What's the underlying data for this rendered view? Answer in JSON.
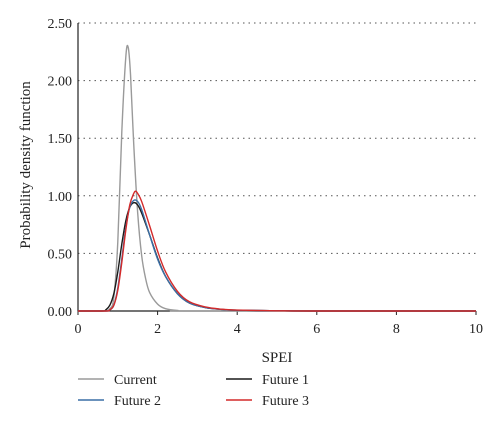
{
  "chart_data": {
    "type": "line",
    "xlabel": "SPEI",
    "ylabel": "Probability density function",
    "xlim": [
      0,
      10
    ],
    "ylim": [
      0,
      2.5
    ],
    "x_ticks": [
      "0",
      "2",
      "4",
      "6",
      "8",
      "10"
    ],
    "y_ticks": [
      "0.00",
      "0.50",
      "1.00",
      "1.50",
      "2.00",
      "2.50"
    ],
    "grid": "horizontal dotted",
    "legend_position": "bottom",
    "series": [
      {
        "name": "Current",
        "color": "#9a9a9a",
        "points": [
          [
            0,
            0
          ],
          [
            0.6,
            0
          ],
          [
            0.8,
            0.02
          ],
          [
            0.9,
            0.12
          ],
          [
            1.0,
            0.6
          ],
          [
            1.1,
            1.55
          ],
          [
            1.2,
            2.2
          ],
          [
            1.26,
            2.29
          ],
          [
            1.32,
            2.05
          ],
          [
            1.4,
            1.45
          ],
          [
            1.5,
            0.85
          ],
          [
            1.6,
            0.48
          ],
          [
            1.7,
            0.28
          ],
          [
            1.8,
            0.16
          ],
          [
            2.0,
            0.06
          ],
          [
            2.2,
            0.02
          ],
          [
            2.5,
            0.005
          ],
          [
            3.0,
            0
          ],
          [
            10,
            0
          ]
        ]
      },
      {
        "name": "Future 1",
        "color": "#1a1a1a",
        "points": [
          [
            0,
            0
          ],
          [
            0.6,
            0
          ],
          [
            0.7,
            0.01
          ],
          [
            0.8,
            0.05
          ],
          [
            0.9,
            0.15
          ],
          [
            1.0,
            0.34
          ],
          [
            1.1,
            0.58
          ],
          [
            1.2,
            0.78
          ],
          [
            1.3,
            0.9
          ],
          [
            1.4,
            0.94
          ],
          [
            1.5,
            0.92
          ],
          [
            1.6,
            0.85
          ],
          [
            1.8,
            0.66
          ],
          [
            2.0,
            0.46
          ],
          [
            2.2,
            0.3
          ],
          [
            2.5,
            0.15
          ],
          [
            2.8,
            0.07
          ],
          [
            3.2,
            0.03
          ],
          [
            3.6,
            0.014
          ],
          [
            4.0,
            0.007
          ],
          [
            5.0,
            0.002
          ],
          [
            6.0,
            0
          ],
          [
            10,
            0
          ]
        ]
      },
      {
        "name": "Future 2",
        "color": "#3a6ea5",
        "points": [
          [
            0,
            0
          ],
          [
            0.7,
            0
          ],
          [
            0.8,
            0.01
          ],
          [
            0.9,
            0.05
          ],
          [
            1.0,
            0.2
          ],
          [
            1.1,
            0.45
          ],
          [
            1.2,
            0.72
          ],
          [
            1.3,
            0.9
          ],
          [
            1.4,
            0.96
          ],
          [
            1.5,
            0.95
          ],
          [
            1.6,
            0.88
          ],
          [
            1.8,
            0.66
          ],
          [
            2.0,
            0.45
          ],
          [
            2.2,
            0.3
          ],
          [
            2.5,
            0.15
          ],
          [
            2.8,
            0.07
          ],
          [
            3.2,
            0.03
          ],
          [
            3.6,
            0.014
          ],
          [
            4.0,
            0.007
          ],
          [
            5.0,
            0.002
          ],
          [
            6.0,
            0
          ],
          [
            10,
            0
          ]
        ]
      },
      {
        "name": "Future 3",
        "color": "#d42a2a",
        "points": [
          [
            0,
            0
          ],
          [
            0.7,
            0
          ],
          [
            0.8,
            0.01
          ],
          [
            0.9,
            0.05
          ],
          [
            1.0,
            0.18
          ],
          [
            1.1,
            0.42
          ],
          [
            1.2,
            0.7
          ],
          [
            1.3,
            0.92
          ],
          [
            1.4,
            1.02
          ],
          [
            1.45,
            1.04
          ],
          [
            1.5,
            1.02
          ],
          [
            1.6,
            0.95
          ],
          [
            1.8,
            0.74
          ],
          [
            2.0,
            0.52
          ],
          [
            2.2,
            0.34
          ],
          [
            2.5,
            0.17
          ],
          [
            2.8,
            0.08
          ],
          [
            3.2,
            0.035
          ],
          [
            3.6,
            0.016
          ],
          [
            4.0,
            0.008
          ],
          [
            5.0,
            0.002
          ],
          [
            6.0,
            0
          ],
          [
            10,
            0
          ]
        ]
      }
    ]
  }
}
